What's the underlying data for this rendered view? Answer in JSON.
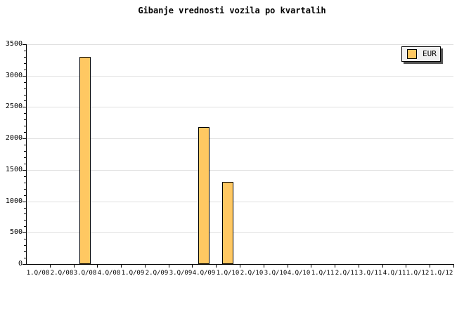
{
  "title": "Gibanje vrednosti vozila po kvartalih",
  "legend": {
    "label": "EUR"
  },
  "colors": {
    "bar_fill": "#FFC862",
    "bar_border": "#000000",
    "grid": "#E0E0E0",
    "axis": "#000000",
    "legend_bg": "#F0F0F0",
    "legend_shadow": "#555555",
    "background": "#FFFFFF"
  },
  "chart_data": {
    "type": "bar",
    "title": "Gibanje vrednosti vozila po kvartalih",
    "categories": [
      "1.Q/08",
      "2.Q/08",
      "3.Q/08",
      "4.Q/08",
      "1.Q/09",
      "2.Q/09",
      "3.Q/09",
      "4.Q/09",
      "1.Q/10",
      "2.Q/10",
      "3.Q/10",
      "4.Q/10",
      "1.Q/11",
      "2.Q/11",
      "3.Q/11",
      "4.Q/11",
      "1.Q/12",
      "1.Q/12"
    ],
    "series": [
      {
        "name": "EUR",
        "values": [
          null,
          null,
          3300,
          null,
          null,
          null,
          null,
          2180,
          1310,
          null,
          null,
          null,
          null,
          null,
          null,
          null,
          null,
          null
        ]
      }
    ],
    "xlabel": "",
    "ylabel": "",
    "ylim": [
      0,
      3500
    ],
    "yticks": [
      0,
      500,
      1000,
      1500,
      2000,
      2500,
      3000,
      3500
    ],
    "ytick_minor_interval": 100,
    "grid": "horizontal-major",
    "legend_position": "top-right"
  }
}
